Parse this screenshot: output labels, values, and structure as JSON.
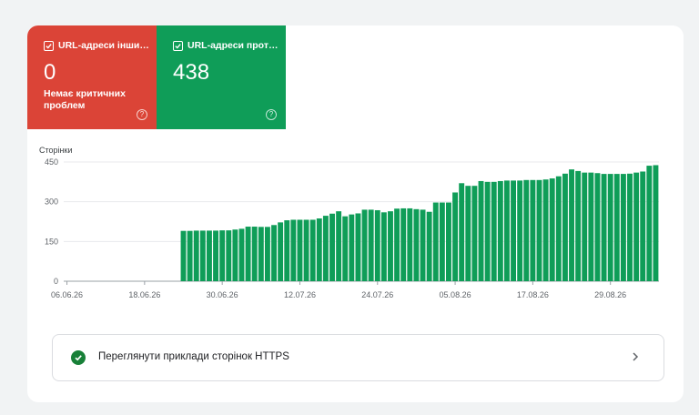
{
  "tiles": [
    {
      "label": "URL-адреси інши…",
      "value": "0",
      "description": "Немає критичних проблем",
      "color": "#db4437",
      "icon": "help-icon"
    },
    {
      "label": "URL-адреси прот…",
      "value": "438",
      "description": "",
      "color": "#0f9d58",
      "icon": "help-icon"
    }
  ],
  "chart_data": {
    "type": "bar",
    "ylabel": "Сторінки",
    "ylim": [
      0,
      450
    ],
    "yticks": [
      "0",
      "150",
      "300",
      "450"
    ],
    "xticks": [
      "06.06.26",
      "18.06.26",
      "30.06.26",
      "12.07.26",
      "24.07.26",
      "05.08.26",
      "17.08.26",
      "29.08.26"
    ],
    "color": "#0f9d58",
    "series": [
      {
        "values": [
          0,
          0,
          0,
          0,
          0,
          0,
          0,
          0,
          0,
          0,
          0,
          0,
          0,
          0,
          0,
          0,
          0,
          0,
          190,
          190,
          191,
          191,
          191,
          191,
          192,
          192,
          195,
          198,
          206,
          206,
          205,
          205,
          212,
          222,
          230,
          232,
          232,
          232,
          232,
          237,
          247,
          255,
          264,
          245,
          252,
          256,
          270,
          270,
          268,
          260,
          264,
          274,
          275,
          275,
          272,
          270,
          262,
          297,
          297,
          297,
          335,
          370,
          360,
          360,
          378,
          375,
          375,
          378,
          380,
          380,
          380,
          382,
          382,
          382,
          384,
          388,
          396,
          406,
          422,
          416,
          410,
          410,
          408,
          405,
          405,
          405,
          405,
          406,
          410,
          414,
          436,
          438
        ]
      }
    ]
  },
  "action_row": {
    "label": "Переглянути приклади сторінок HTTPS",
    "status_icon": "check-circle-icon",
    "chevron_icon": "chevron-right-icon"
  }
}
